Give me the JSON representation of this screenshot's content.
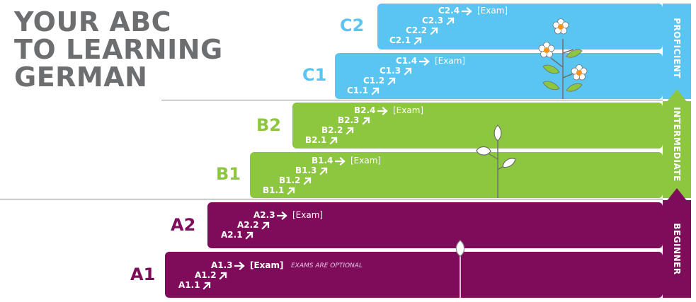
{
  "title": {
    "line1": "YOUR ABC",
    "line2": "TO LEARNING",
    "line3": "GERMAN"
  },
  "colors": {
    "proficient": "#5bc5f2",
    "intermediate": "#8dc63f",
    "beginner": "#7f0b5b",
    "title": "#6d6e70"
  },
  "levels": {
    "c2": {
      "label": "C2",
      "steps": [
        "C2.1",
        "C2.2",
        "C2.3",
        "C2.4"
      ],
      "exam": "[Exam]"
    },
    "c1": {
      "label": "C1",
      "steps": [
        "C1.1",
        "C1.2",
        "C1.3",
        "C1.4"
      ],
      "exam": "[Exam]"
    },
    "b2": {
      "label": "B2",
      "steps": [
        "B2.1",
        "B2.2",
        "B2.3",
        "B2.4"
      ],
      "exam": "[Exam]"
    },
    "b1": {
      "label": "B1",
      "steps": [
        "B1.1",
        "B1.2",
        "B1.3",
        "B1.4"
      ],
      "exam": "[Exam]"
    },
    "a2": {
      "label": "A2",
      "steps": [
        "A2.1",
        "A2.2",
        "A2.3"
      ],
      "exam": "[Exam]"
    },
    "a1": {
      "label": "A1",
      "steps": [
        "A1.1",
        "A1.2",
        "A1.3"
      ],
      "exam": "[Exam]",
      "note": "EXAMS ARE OPTIONAL"
    }
  },
  "sidebar": {
    "proficient": "PROFICIENT",
    "intermediate": "INTERMEDIATE",
    "beginner": "BEGINNER"
  }
}
